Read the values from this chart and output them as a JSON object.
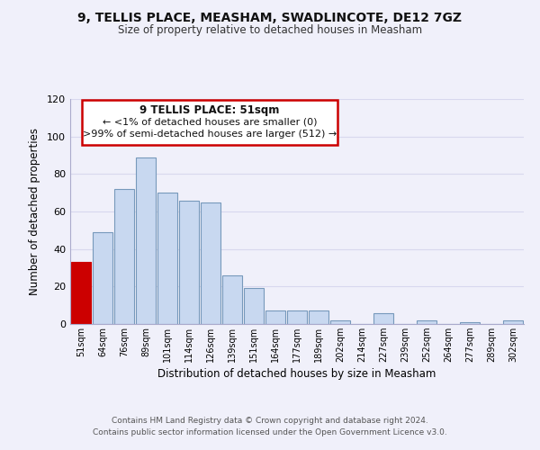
{
  "title": "9, TELLIS PLACE, MEASHAM, SWADLINCOTE, DE12 7GZ",
  "subtitle": "Size of property relative to detached houses in Measham",
  "xlabel": "Distribution of detached houses by size in Measham",
  "ylabel": "Number of detached properties",
  "bar_color": "#c8d8f0",
  "bar_edge_color": "#7799bb",
  "highlight_color": "#cc0000",
  "categories": [
    "51sqm",
    "64sqm",
    "76sqm",
    "89sqm",
    "101sqm",
    "114sqm",
    "126sqm",
    "139sqm",
    "151sqm",
    "164sqm",
    "177sqm",
    "189sqm",
    "202sqm",
    "214sqm",
    "227sqm",
    "239sqm",
    "252sqm",
    "264sqm",
    "277sqm",
    "289sqm",
    "302sqm"
  ],
  "values": [
    33,
    49,
    72,
    89,
    70,
    66,
    65,
    26,
    19,
    7,
    7,
    7,
    2,
    0,
    6,
    0,
    2,
    0,
    1,
    0,
    2
  ],
  "highlight_index": 0,
  "ylim": [
    0,
    120
  ],
  "yticks": [
    0,
    20,
    40,
    60,
    80,
    100,
    120
  ],
  "annotation_title": "9 TELLIS PLACE: 51sqm",
  "annotation_line1": "← <1% of detached houses are smaller (0)",
  "annotation_line2": ">99% of semi-detached houses are larger (512) →",
  "footer_line1": "Contains HM Land Registry data © Crown copyright and database right 2024.",
  "footer_line2": "Contains public sector information licensed under the Open Government Licence v3.0.",
  "background_color": "#f0f0fa",
  "grid_color": "#d8d8ee"
}
